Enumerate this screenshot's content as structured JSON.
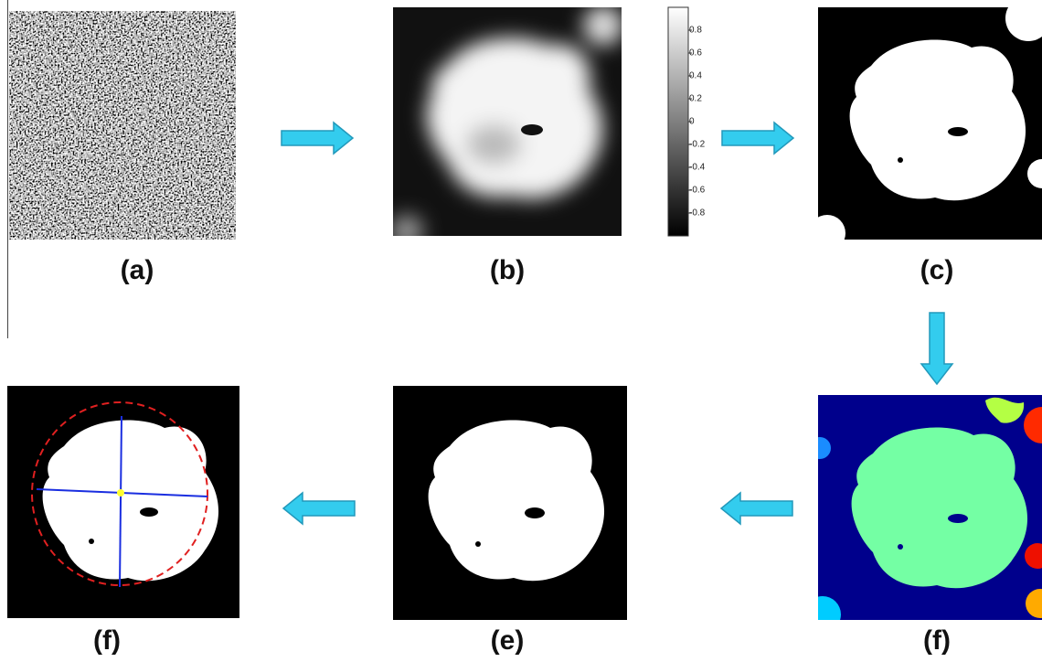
{
  "panels": [
    {
      "label": "(a)"
    },
    {
      "label": "(b)"
    },
    {
      "label": "(c)"
    },
    {
      "label": "(f)"
    },
    {
      "label": "(e)"
    },
    {
      "label": "(f)"
    }
  ],
  "colorbar": {
    "ticks": [
      0.8,
      0.6,
      0.4,
      0.2,
      0,
      -0.2,
      -0.4,
      -0.6,
      -0.8
    ]
  }
}
